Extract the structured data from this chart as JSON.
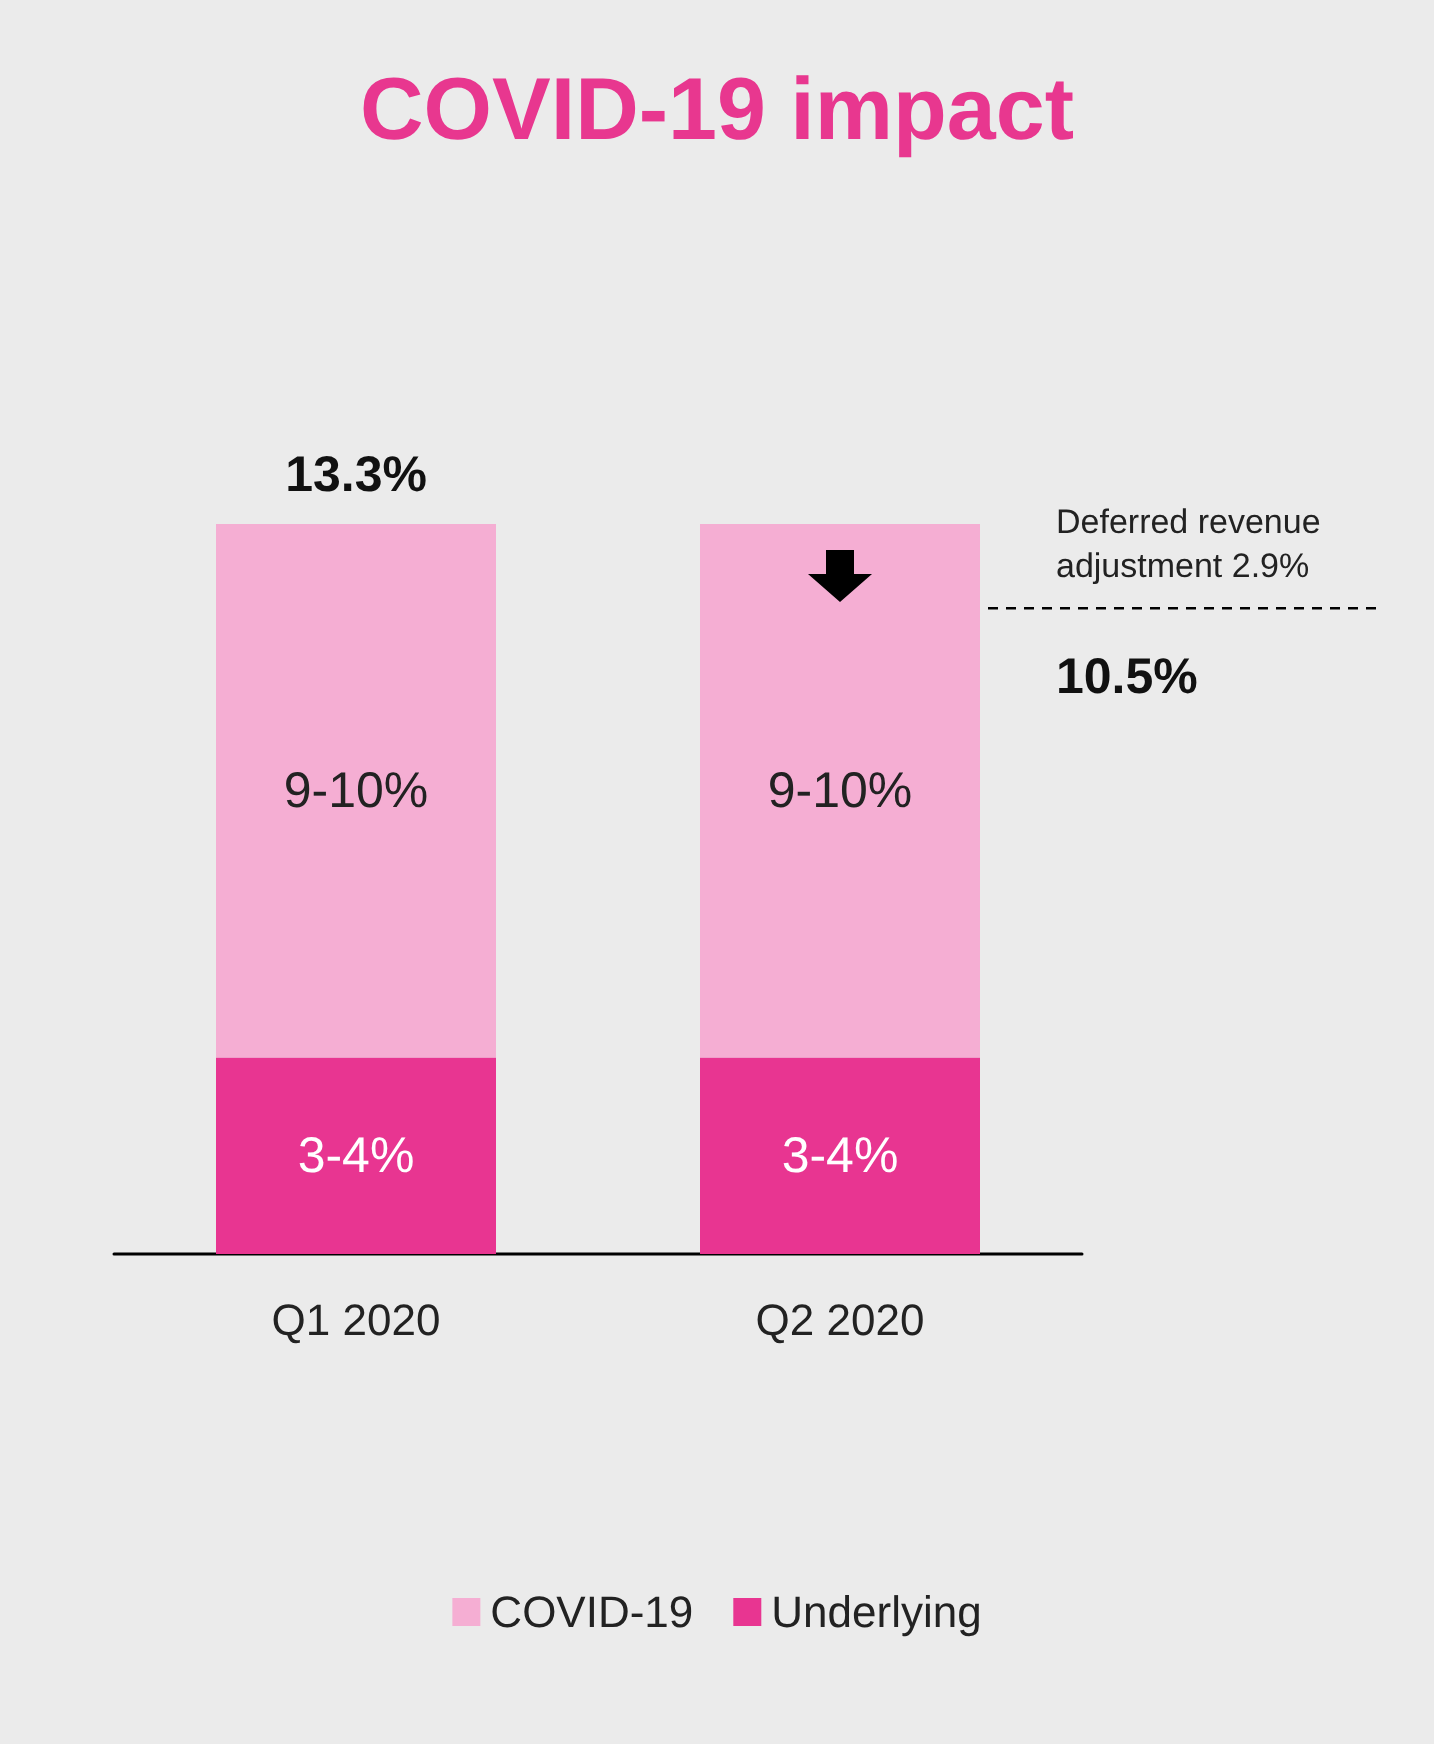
{
  "chart_data": {
    "type": "bar",
    "title": "COVID-19 impact",
    "categories": [
      "Q1 2020",
      "Q2 2020"
    ],
    "stacked": true,
    "tick_labels": "x",
    "series": [
      {
        "name": "Underlying",
        "color": "#e83591",
        "values": [
          3.5,
          3.5
        ],
        "value_labels": [
          "3-4%",
          "3-4%"
        ]
      },
      {
        "name": "COVID-19",
        "color": "#f5aed3",
        "values": [
          9.5,
          9.5
        ],
        "value_labels": [
          "9-10%",
          "9-10%"
        ]
      }
    ],
    "ref_lines": [
      {
        "axis": "y",
        "value": 11.5,
        "label": "Deferred revenue adjustment 2.9%",
        "line_style": "dashed",
        "color": "#000000"
      }
    ],
    "annotations": [
      "13.3%",
      "10.5%"
    ],
    "legend": "bottom"
  }
}
